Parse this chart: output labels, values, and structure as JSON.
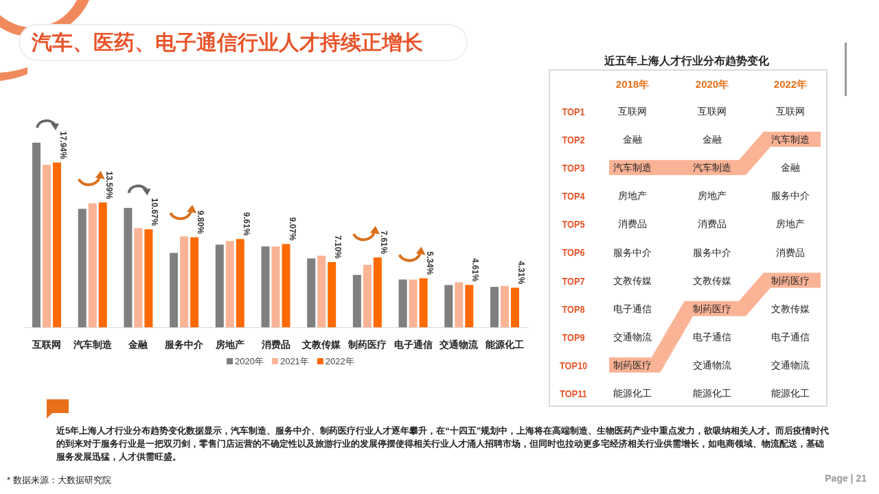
{
  "chart_data": [
    {
      "type": "bar",
      "title": "汽车、医药、电子通信行业人才持续正增长",
      "categories": [
        "互联网",
        "汽车制造",
        "金融",
        "服务中介",
        "房地产",
        "消费品",
        "文教传媒",
        "制药医疗",
        "电子通信",
        "交通物流",
        "能源化工"
      ],
      "legend": "bottom",
      "series": [
        {
          "name": "2020年",
          "color": "#7f7f7f",
          "values": [
            20.1,
            12.9,
            13.0,
            8.1,
            9.0,
            8.8,
            7.5,
            5.7,
            5.2,
            4.6,
            4.4
          ]
        },
        {
          "name": "2021年",
          "color": "#fbb396",
          "values": [
            17.7,
            13.5,
            10.8,
            9.9,
            9.4,
            8.8,
            7.8,
            6.8,
            5.2,
            4.9,
            4.5
          ]
        },
        {
          "name": "2022年",
          "color": "#ff6a00",
          "values": [
            17.94,
            13.59,
            10.67,
            9.8,
            9.61,
            9.07,
            7.1,
            7.61,
            5.34,
            4.61,
            4.31
          ],
          "value_labels": [
            "17.94%",
            "13.59%",
            "10.67%",
            "9.80%",
            "9.61%",
            "9.07%",
            "7.10%",
            "7.61%",
            "5.34%",
            "4.61%",
            "4.31%"
          ]
        }
      ],
      "annotations": [
        "近5年上海人才行业分布趋势变化数据显示，汽车制造、服务中介、制药医疗行业人才逐年攀升，在“十四五”规划中，上海将在高端制造、生物医药产业中重点发力，欲吸纳相关人才。而后疫情时代的到来对于服务行业是一把双刃剑，零售门店运营的不确定性以及旅游行业的发展停摆使得相关行业人才涌人招聘市场，但同时也拉动更多宅经济相关行业供需增长，如电商领域、物流配送，基础服务发展迅猛，人才供需旺盛。",
        "* 数据来源：大数据研究院",
        "Page | 21"
      ]
    },
    {
      "type": "other",
      "title": "近五年上海人才行业分布趋势变化",
      "categories": [
        "2018年",
        "2020年",
        "2022年"
      ],
      "y_categories": [
        "TOP1",
        "TOP2",
        "TOP3",
        "TOP4",
        "TOP5",
        "TOP6",
        "TOP7",
        "TOP8",
        "TOP9",
        "TOP10",
        "TOP11"
      ],
      "cell_labels": [
        [
          "互联网",
          "互联网",
          "互联网"
        ],
        [
          "金融",
          "金融",
          "汽车制造"
        ],
        [
          "汽车制造",
          "汽车制造",
          "金融"
        ],
        [
          "房地产",
          "房地产",
          "服务中介"
        ],
        [
          "消费品",
          "消费品",
          "房地产"
        ],
        [
          "服务中介",
          "服务中介",
          "消费品"
        ],
        [
          "文教传媒",
          "文教传媒",
          "制药医疗"
        ],
        [
          "电子通信",
          "制药医疗",
          "文教传媒"
        ],
        [
          "交通物流",
          "电子通信",
          "电子通信"
        ],
        [
          "制药医疗",
          "交通物流",
          "交通物流"
        ],
        [
          "能源化工",
          "能源化工",
          "能源化工"
        ]
      ]
    }
  ]
}
